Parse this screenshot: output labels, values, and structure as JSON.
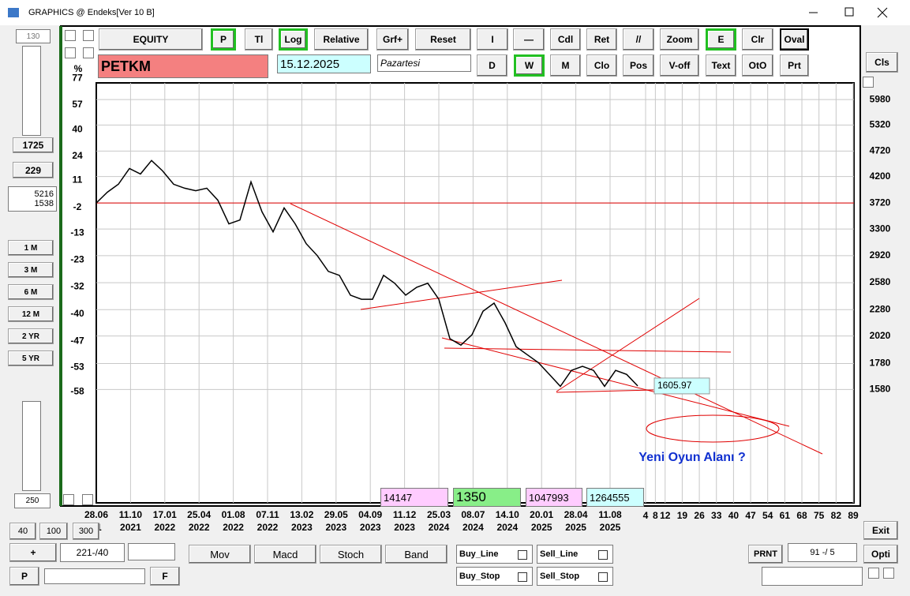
{
  "window": {
    "title": "GRAPHICS @ Endeks[Ver 10 B]"
  },
  "toolbar": {
    "row1": [
      "EQUITY",
      "P",
      "Tl",
      "Log",
      "Relative",
      "Grf+",
      "Reset",
      "I",
      "—",
      "Cdl",
      "Ret",
      "//",
      "Zoom",
      "E",
      "Clr",
      "Oval"
    ],
    "row2": [
      "D",
      "W",
      "M",
      "Clo",
      "Pos",
      "V-off",
      "Text",
      "OtO",
      "Prt"
    ]
  },
  "symbol": "PETKM",
  "date": "15.12.2025",
  "weekday": "Pazartesi",
  "left_panel": {
    "top_field": "130",
    "fields": [
      "1725",
      "229"
    ],
    "range": [
      "5216",
      "1538"
    ],
    "periods": [
      "1 M",
      "3 M",
      "6 M",
      "12 M",
      "2 YR",
      "5 YR"
    ],
    "bottom_field": "250"
  },
  "bottom_bar": {
    "zoom": [
      "40",
      "100",
      "300"
    ],
    "plus": "+",
    "position": "221-/40",
    "p": "P",
    "f": "F",
    "indicators": [
      "Mov",
      "Macd",
      "Stoch",
      "Band"
    ],
    "checks": [
      "Buy_Line",
      "Sell_Line",
      "Buy_Stop",
      "Sell_Stop"
    ],
    "print": "PRNT",
    "page": "91 -/ 5"
  },
  "right_panel": {
    "cls": "Cls",
    "exit": "Exit",
    "opti": "Opti"
  },
  "info_fields": [
    "14147",
    "1350",
    "1047993",
    "1264555"
  ],
  "chart_data": {
    "type": "line",
    "log": true,
    "grid": true,
    "percent_label": "%",
    "annotation": "Yeni Oyun Alanı ?",
    "ylim": [
      939,
      6455
    ],
    "yticks": [
      5980,
      5320,
      4720,
      4200,
      3720,
      3300,
      2920,
      2580,
      2280,
      2020,
      1780,
      1580
    ],
    "y2ticks": [
      77,
      57,
      40,
      24,
      11,
      -2,
      -13,
      -23,
      -32,
      -40,
      -47,
      -53,
      -58
    ],
    "reference_line": 3720,
    "last_price": 1605.97,
    "date_ticks": [
      "28.06",
      "11.10",
      "17.01",
      "25.04",
      "01.08",
      "07.11",
      "13.02",
      "29.05",
      "04.09",
      "11.12",
      "25.03",
      "08.07",
      "14.10",
      "20.01",
      "28.04",
      "11.08"
    ],
    "year_ticks": [
      "1",
      "2021",
      "2022",
      "2022",
      "2022",
      "2022",
      "2023",
      "2023",
      "2023",
      "2023",
      "2024",
      "2024",
      "2024",
      "2025",
      "2025",
      "2025"
    ],
    "future_ticks": [
      4,
      8,
      12,
      19,
      26,
      33,
      40,
      47,
      54,
      61,
      68,
      75,
      82,
      89
    ],
    "series": [
      {
        "color": "#000000",
        "values": [
          3720,
          3908,
          4053,
          4358,
          4249,
          4520,
          4310,
          4053,
          3980,
          3935,
          3980,
          3768,
          3379,
          3440,
          4098,
          3570,
          3258,
          3636,
          3379,
          3085,
          2921,
          2717,
          2668,
          2436,
          2391,
          2391,
          2668,
          2573,
          2436,
          2526,
          2573,
          2391,
          1995,
          1937,
          2031,
          2263,
          2349,
          2145,
          1923,
          1854,
          1788,
          1693,
          1603,
          1725,
          1757,
          1725,
          1603,
          1725,
          1693,
          1606
        ]
      }
    ]
  }
}
